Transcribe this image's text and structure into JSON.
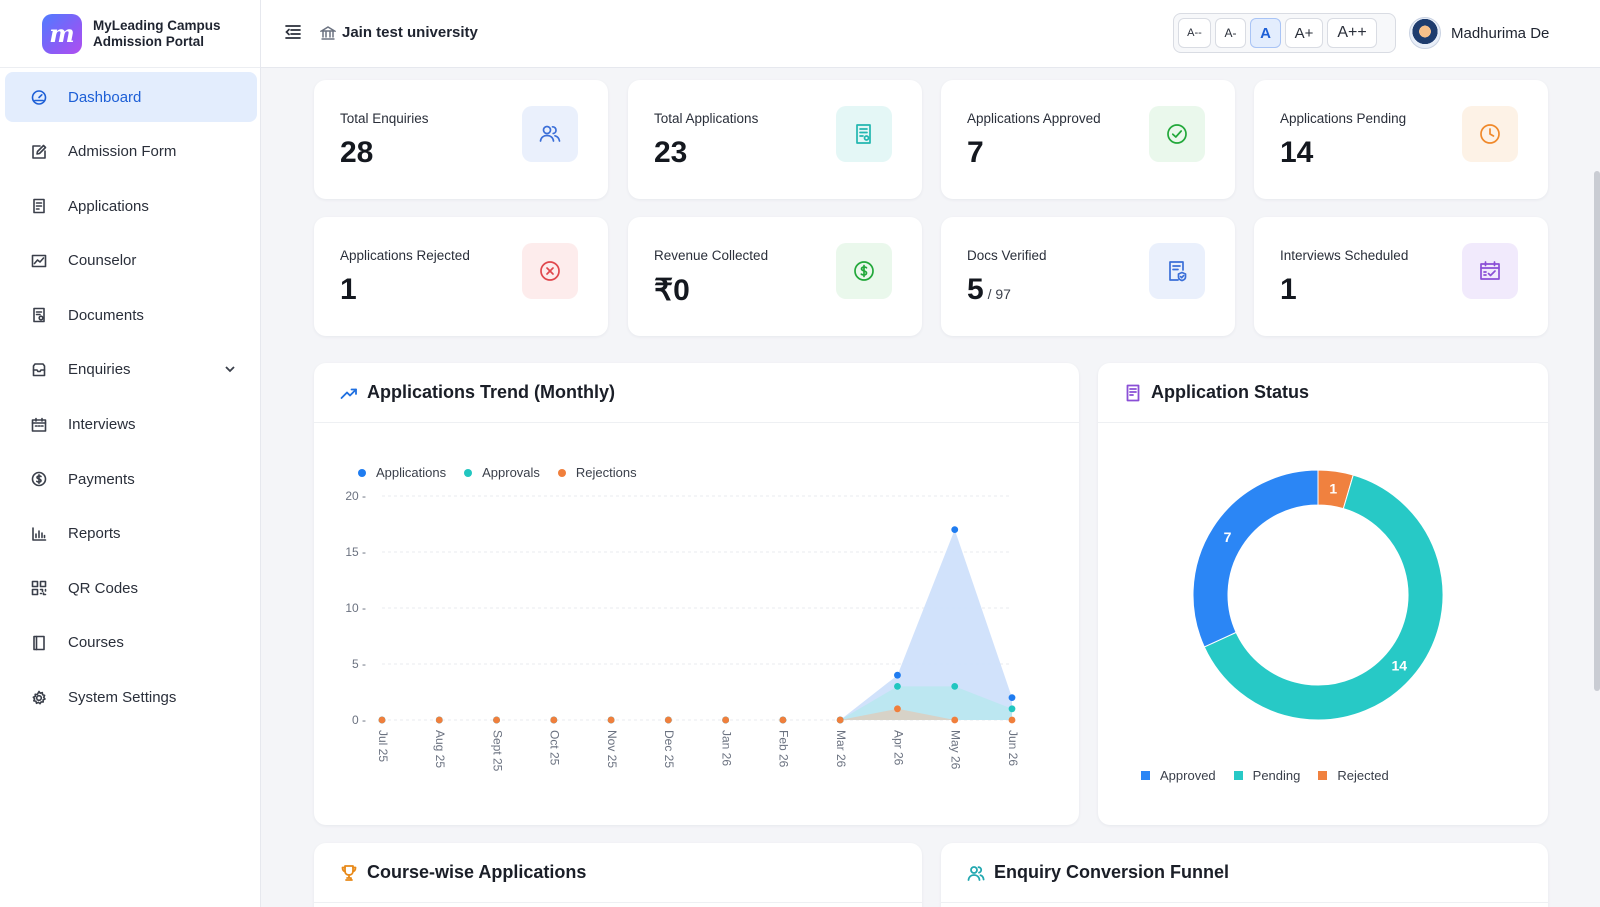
{
  "brand": {
    "line1": "MyLeading Campus",
    "line2": "Admission Portal",
    "logo_letter": "m"
  },
  "sidebar": {
    "items": [
      {
        "label": "Dashboard",
        "icon": "dashboard-icon",
        "active": true
      },
      {
        "label": "Admission Form",
        "icon": "edit-form-icon"
      },
      {
        "label": "Applications",
        "icon": "applications-icon"
      },
      {
        "label": "Counselor",
        "icon": "counselor-chart-icon"
      },
      {
        "label": "Documents",
        "icon": "documents-icon"
      },
      {
        "label": "Enquiries",
        "icon": "inbox-icon",
        "has_submenu": true
      },
      {
        "label": "Interviews",
        "icon": "calendar-icon"
      },
      {
        "label": "Payments",
        "icon": "dollar-icon"
      },
      {
        "label": "Reports",
        "icon": "bar-chart-icon"
      },
      {
        "label": "QR Codes",
        "icon": "qr-code-icon"
      },
      {
        "label": "Courses",
        "icon": "book-icon"
      },
      {
        "label": "System Settings",
        "icon": "gear-icon"
      }
    ]
  },
  "header": {
    "university": "Jain test university",
    "font_sizes": [
      "A--",
      "A-",
      "A",
      "A+",
      "A++"
    ],
    "active_font_size": "A",
    "user_name": "Madhurima De"
  },
  "stats": [
    {
      "label": "Total Enquiries",
      "value": "28",
      "icon": "users-icon",
      "color": "#3b6fd8",
      "bg": "#eaf0fc"
    },
    {
      "label": "Total Applications",
      "value": "23",
      "icon": "document-icon",
      "color": "#22b7b0",
      "bg": "#e4f7f6"
    },
    {
      "label": "Applications Approved",
      "value": "7",
      "icon": "check-circle-icon",
      "color": "#22a83a",
      "bg": "#eaf8ec"
    },
    {
      "label": "Applications Pending",
      "value": "14",
      "icon": "clock-icon",
      "color": "#f0892a",
      "bg": "#fdf2e6"
    },
    {
      "label": "Applications Rejected",
      "value": "1",
      "icon": "x-circle-icon",
      "color": "#e0474c",
      "bg": "#fdecec"
    },
    {
      "label": "Revenue Collected",
      "value": "₹0",
      "icon": "dollar-circle-icon",
      "color": "#22a83a",
      "bg": "#eaf8ec"
    },
    {
      "label": "Docs Verified",
      "value": "5",
      "sub": " / 97",
      "icon": "verified-doc-icon",
      "color": "#3b6fd8",
      "bg": "#eaf0fc"
    },
    {
      "label": "Interviews Scheduled",
      "value": "1",
      "icon": "calendar-check-icon",
      "color": "#8a4fd6",
      "bg": "#f1eafc"
    }
  ],
  "trend_panel": {
    "title": "Applications Trend (Monthly)"
  },
  "status_panel": {
    "title": "Application Status"
  },
  "bottom_panels": {
    "course_title": "Course-wise Applications",
    "funnel_title": "Enquiry Conversion Funnel"
  },
  "chart_data": [
    {
      "type": "area",
      "title": "Applications Trend (Monthly)",
      "categories": [
        "Jul 25",
        "Aug 25",
        "Sept 25",
        "Oct 25",
        "Nov 25",
        "Dec 25",
        "Jan 26",
        "Feb 26",
        "Mar 26",
        "Apr 26",
        "May 26",
        "Jun 26"
      ],
      "series": [
        {
          "name": "Applications",
          "color": "#1f7cf0",
          "values": [
            0,
            0,
            0,
            0,
            0,
            0,
            0,
            0,
            0,
            4,
            17,
            2
          ]
        },
        {
          "name": "Approvals",
          "color": "#22c6c0",
          "values": [
            0,
            0,
            0,
            0,
            0,
            0,
            0,
            0,
            0,
            3,
            3,
            1
          ]
        },
        {
          "name": "Rejections",
          "color": "#f07f3c",
          "values": [
            0,
            0,
            0,
            0,
            0,
            0,
            0,
            0,
            0,
            1,
            0,
            0
          ]
        }
      ],
      "yticks": [
        0,
        5,
        10,
        15,
        20
      ],
      "ylim": [
        0,
        20
      ],
      "grid": true,
      "legend": "top-left"
    },
    {
      "type": "pie",
      "title": "Application Status",
      "donut": true,
      "slices": [
        {
          "name": "Approved",
          "value": 7,
          "color": "#2b86f5"
        },
        {
          "name": "Pending",
          "value": 14,
          "color": "#27c9c6"
        },
        {
          "name": "Rejected",
          "value": 1,
          "color": "#f0813f"
        }
      ],
      "legend": "bottom"
    }
  ]
}
